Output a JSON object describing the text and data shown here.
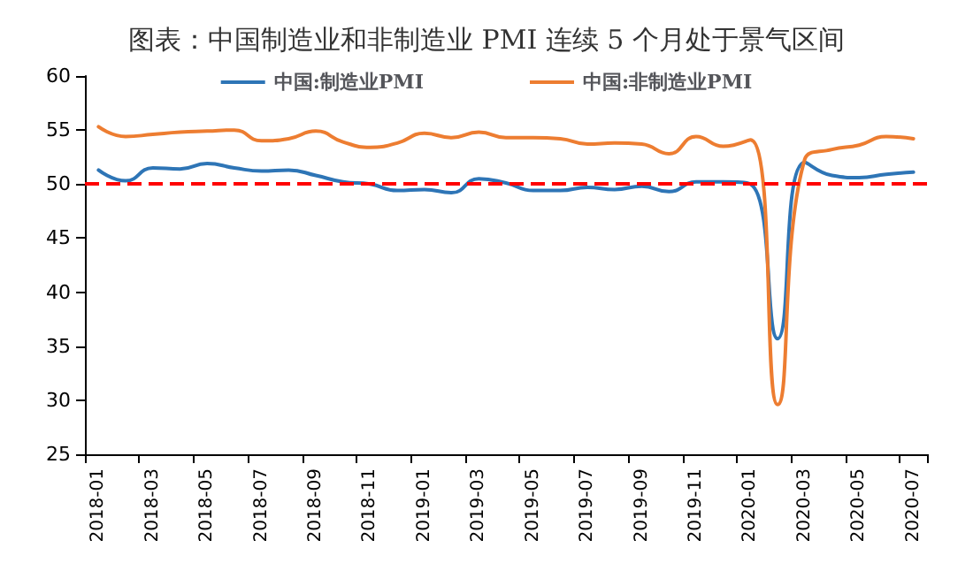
{
  "chart_data": {
    "type": "line",
    "title": "图表：中国制造业和非制造业 PMI 连续 5 个月处于景气区间",
    "categories": [
      "2018-01",
      null,
      "2018-03",
      null,
      "2018-05",
      null,
      "2018-07",
      null,
      "2018-09",
      null,
      "2018-11",
      null,
      "2019-01",
      null,
      "2019-03",
      null,
      "2019-05",
      null,
      "2019-07",
      null,
      "2019-09",
      null,
      "2019-11",
      null,
      "2020-01",
      null,
      "2020-03",
      null,
      "2020-05",
      null,
      "2020-07"
    ],
    "series": [
      {
        "name": "中国:制造业PMI",
        "color": "#2e75b6",
        "values": [
          51.3,
          50.3,
          51.5,
          51.4,
          51.9,
          51.5,
          51.2,
          51.3,
          50.8,
          50.2,
          50.0,
          49.4,
          49.5,
          49.2,
          50.5,
          50.1,
          49.4,
          49.4,
          49.7,
          49.5,
          49.8,
          49.3,
          50.2,
          50.2,
          50.0,
          35.7,
          52.0,
          50.8,
          50.6,
          50.9,
          51.1
        ]
      },
      {
        "name": "中国:非制造业PMI",
        "color": "#ed7d31",
        "values": [
          55.3,
          54.4,
          54.6,
          54.8,
          54.9,
          55.0,
          54.0,
          54.2,
          54.9,
          53.9,
          53.4,
          53.8,
          54.7,
          54.3,
          54.8,
          54.3,
          54.3,
          54.2,
          53.7,
          53.8,
          53.7,
          52.8,
          54.4,
          53.5,
          54.1,
          29.6,
          52.3,
          53.2,
          53.6,
          54.4,
          54.2
        ]
      }
    ],
    "ylim": [
      25,
      60
    ],
    "yticks": [
      25,
      30,
      35,
      40,
      45,
      50,
      55,
      60
    ],
    "ref_lines": [
      {
        "axis": "y",
        "value": 50,
        "color": "#ff0000",
        "line_style": "dashed"
      }
    ],
    "legend": "top",
    "grid": false,
    "marker": "none",
    "line_style": "solid"
  }
}
